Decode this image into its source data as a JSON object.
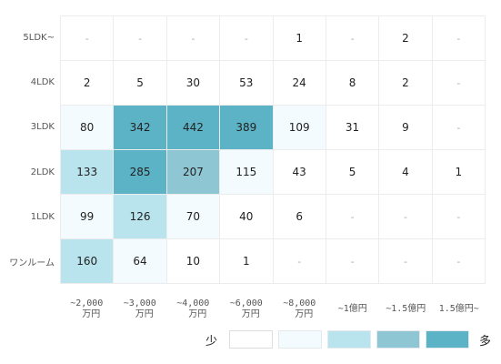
{
  "chart_data": {
    "type": "heatmap",
    "row_labels": [
      "5LDK~",
      "4LDK",
      "3LDK",
      "2LDK",
      "1LDK",
      "ワンルーム"
    ],
    "col_labels": [
      [
        "~2,000",
        "万円"
      ],
      [
        "~3,000",
        "万円"
      ],
      [
        "~4,000",
        "万円"
      ],
      [
        "~6,000",
        "万円"
      ],
      [
        "~8,000",
        "万円"
      ],
      [
        "~1億円"
      ],
      [
        "~1.5億円"
      ],
      [
        "1.5億円~"
      ]
    ],
    "rows": [
      [
        "-",
        "-",
        "-",
        "-",
        "1",
        "-",
        "2",
        "-"
      ],
      [
        "2",
        "5",
        "30",
        "53",
        "24",
        "8",
        "2",
        "-"
      ],
      [
        "80",
        "342",
        "442",
        "389",
        "109",
        "31",
        "9",
        "-"
      ],
      [
        "133",
        "285",
        "207",
        "115",
        "43",
        "5",
        "4",
        "1"
      ],
      [
        "99",
        "126",
        "70",
        "40",
        "6",
        "-",
        "-",
        "-"
      ],
      [
        "160",
        "64",
        "10",
        "1",
        "-",
        "-",
        "-",
        "-"
      ]
    ],
    "levels": [
      [
        0,
        0,
        0,
        0,
        0,
        0,
        0,
        0
      ],
      [
        0,
        0,
        0,
        0,
        0,
        0,
        0,
        0
      ],
      [
        1,
        4,
        4,
        4,
        1,
        0,
        0,
        0
      ],
      [
        2,
        4,
        3,
        1,
        0,
        0,
        0,
        0
      ],
      [
        1,
        2,
        1,
        0,
        0,
        0,
        0,
        0
      ],
      [
        2,
        1,
        0,
        0,
        0,
        0,
        0,
        0
      ]
    ],
    "level_colors": [
      "#ffffff",
      "#f3fbfe",
      "#b9e4ee",
      "#8ec6d3",
      "#5db3c6"
    ],
    "legend": {
      "low_label": "少",
      "high_label": "多",
      "border_color": "#e3e9ec"
    }
  }
}
